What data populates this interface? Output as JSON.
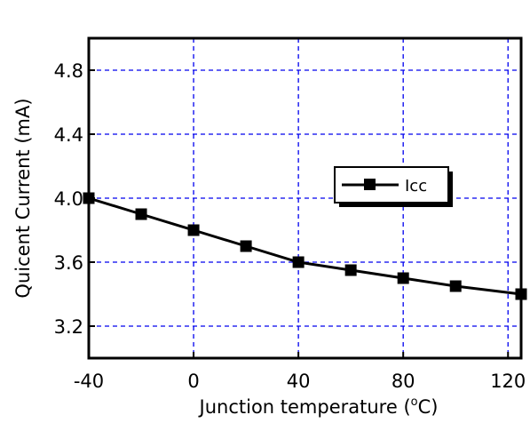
{
  "chart_data": {
    "type": "line",
    "xlabel": "Junction temperature (",
    "xlabel_sup": "o",
    "xlabel_unit": "C)",
    "ylabel": "Quicent Current (mA)",
    "xlim": [
      -40,
      125
    ],
    "ylim": [
      3.0,
      5.0
    ],
    "xticks": [
      -40,
      0,
      40,
      80,
      120
    ],
    "xtick_labels": [
      "-40",
      "0",
      "40",
      "80",
      "120"
    ],
    "yticks": [
      3.2,
      3.6,
      4.0,
      4.4,
      4.8
    ],
    "ytick_labels": [
      "3.2",
      "3.6",
      "4.0",
      "4.4",
      "4.8"
    ],
    "grid": true,
    "legend_position": "right",
    "series": [
      {
        "name": "Icc",
        "color": "#000000",
        "marker": "square",
        "x": [
          -40,
          -20,
          0,
          20,
          40,
          60,
          80,
          100,
          125
        ],
        "y": [
          4.0,
          3.9,
          3.8,
          3.7,
          3.6,
          3.55,
          3.5,
          3.45,
          3.4
        ]
      }
    ]
  }
}
